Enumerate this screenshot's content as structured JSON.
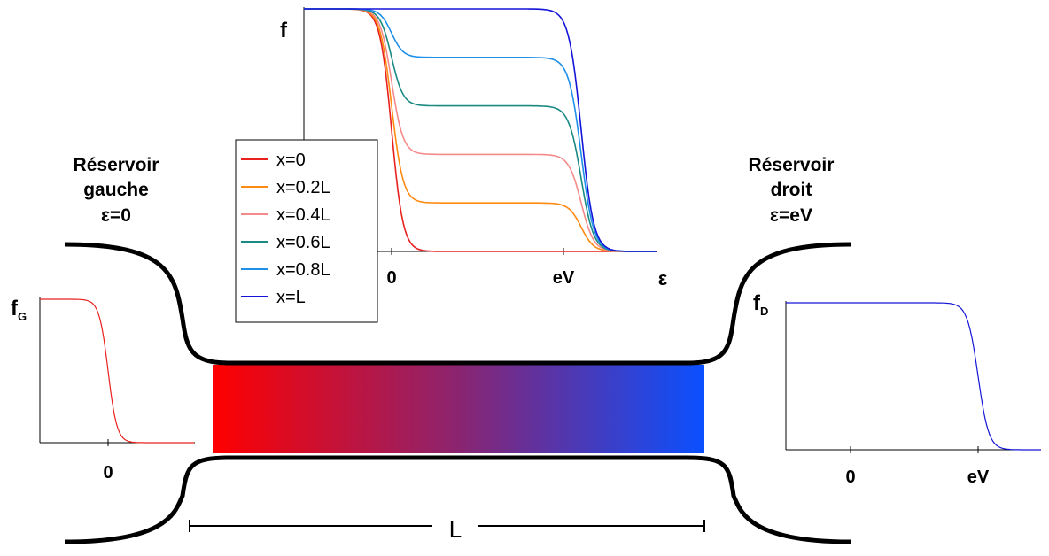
{
  "left_reservoir": {
    "line1": "Réservoir",
    "line2": "gauche",
    "line3": "ε=0"
  },
  "right_reservoir": {
    "line1": "Réservoir",
    "line2": "droit",
    "line3": "ε=eV"
  },
  "wire_length_label": "L",
  "colors": {
    "hot": "#ff0000",
    "cold": "#0a50ff",
    "outline": "#000000"
  },
  "main_plot": {
    "ylabel": "f",
    "xlabel": "ε",
    "xticks": [
      "0",
      "eV"
    ],
    "legend": [
      {
        "label": "x=0",
        "color": "#e8201e",
        "plateau": 0.0
      },
      {
        "label": "x=0.2L",
        "color": "#ff8a12",
        "plateau": 0.2
      },
      {
        "label": "x=0.4L",
        "color": "#f58a8a",
        "plateau": 0.4
      },
      {
        "label": "x=0.6L",
        "color": "#1a8a82",
        "plateau": 0.6
      },
      {
        "label": "x=0.8L",
        "color": "#1e90e8",
        "plateau": 0.8
      },
      {
        "label": "x=L",
        "color": "#1414d8",
        "plateau": 1.0
      }
    ]
  },
  "left_plot": {
    "ylabel": "f",
    "ylabel_sub": "G",
    "xtick": "0",
    "color": "#e8201e"
  },
  "right_plot": {
    "ylabel": "f",
    "ylabel_sub": "D",
    "xticks": [
      "0",
      "eV"
    ],
    "color": "#1414d8"
  }
}
